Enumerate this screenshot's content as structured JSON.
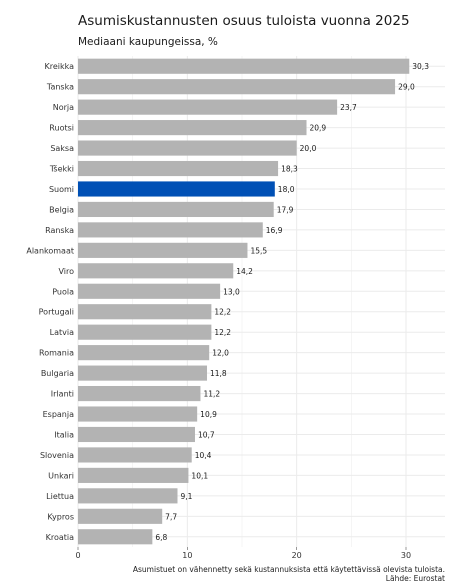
{
  "chart_data": {
    "type": "bar",
    "orientation": "horizontal",
    "title": "Asumiskustannusten osuus tuloista vuonna 2025",
    "subtitle": "Mediaani kaupungeissa, %",
    "categories": [
      "Kreikka",
      "Tanska",
      "Norja",
      "Ruotsi",
      "Saksa",
      "Tšekki",
      "Suomi",
      "Belgia",
      "Ranska",
      "Alankomaat",
      "Viro",
      "Puola",
      "Portugali",
      "Latvia",
      "Romania",
      "Bulgaria",
      "Irlanti",
      "Espanja",
      "Italia",
      "Slovenia",
      "Unkari",
      "Liettua",
      "Kypros",
      "Kroatia"
    ],
    "values": [
      30.3,
      29.0,
      23.7,
      20.9,
      20.0,
      18.3,
      18.0,
      17.9,
      16.9,
      15.5,
      14.2,
      13.0,
      12.2,
      12.2,
      12.0,
      11.8,
      11.2,
      10.9,
      10.7,
      10.4,
      10.1,
      9.1,
      7.7,
      6.8
    ],
    "value_labels": [
      "30,3",
      "29,0",
      "23,7",
      "20,9",
      "20,0",
      "18,3",
      "18,0",
      "17,9",
      "16,9",
      "15,5",
      "14,2",
      "13,0",
      "12,2",
      "12,2",
      "12,0",
      "11,8",
      "11,2",
      "10,9",
      "10,7",
      "10,4",
      "10,1",
      "9,1",
      "7,7",
      "6,8"
    ],
    "highlight": "Suomi",
    "xlim": [
      0,
      33
    ],
    "xticks": [
      0,
      10,
      20,
      30
    ],
    "xtick_labels": [
      "0",
      "10",
      "20",
      "30"
    ],
    "grid": true,
    "colors": {
      "bar": "#b3b3b3",
      "highlight": "#0050b5",
      "grid": "#ebebeb"
    },
    "caption_lines": [
      "Asumistuet on vähennetty sekä kustannuksista että käytettävissä olevista tuloista.",
      "Lähde: Eurostat"
    ]
  }
}
